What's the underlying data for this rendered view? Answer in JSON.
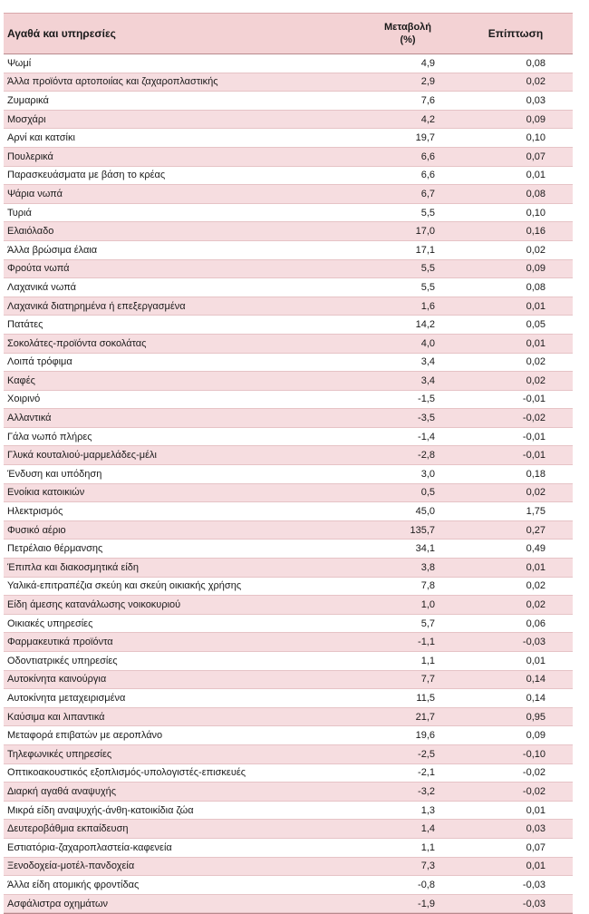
{
  "header": {
    "item": "Αγαθά και υπηρεσίες",
    "change_line1": "Μεταβολή",
    "change_line2": "(%)",
    "impact": "Επίπτωση"
  },
  "rows": [
    {
      "item": "Ψωμί",
      "change": "4,9",
      "impact": "0,08"
    },
    {
      "item": "Άλλα προϊόντα αρτοποιίας και ζαχαροπλαστικής",
      "change": "2,9",
      "impact": "0,02"
    },
    {
      "item": "Ζυμαρικά",
      "change": "7,6",
      "impact": "0,03"
    },
    {
      "item": "Μοσχάρι",
      "change": "4,2",
      "impact": "0,09"
    },
    {
      "item": "Αρνί και κατσίκι",
      "change": "19,7",
      "impact": "0,10"
    },
    {
      "item": "Πουλερικά",
      "change": "6,6",
      "impact": "0,07"
    },
    {
      "item": "Παρασκευάσματα με βάση το κρέας",
      "change": "6,6",
      "impact": "0,01"
    },
    {
      "item": "Ψάρια νωπά",
      "change": "6,7",
      "impact": "0,08"
    },
    {
      "item": "Τυριά",
      "change": "5,5",
      "impact": "0,10"
    },
    {
      "item": "Ελαιόλαδο",
      "change": "17,0",
      "impact": "0,16"
    },
    {
      "item": "Άλλα βρώσιμα έλαια",
      "change": "17,1",
      "impact": "0,02"
    },
    {
      "item": "Φρούτα νωπά",
      "change": "5,5",
      "impact": "0,09"
    },
    {
      "item": "Λαχανικά νωπά",
      "change": "5,5",
      "impact": "0,08"
    },
    {
      "item": "Λαχανικά διατηρημένα ή επεξεργασμένα",
      "change": "1,6",
      "impact": "0,01"
    },
    {
      "item": "Πατάτες",
      "change": "14,2",
      "impact": "0,05"
    },
    {
      "item": "Σοκολάτες-προϊόντα σοκολάτας",
      "change": "4,0",
      "impact": "0,01"
    },
    {
      "item": "Λοιπά τρόφιμα",
      "change": "3,4",
      "impact": "0,02"
    },
    {
      "item": "Καφές",
      "change": "3,4",
      "impact": "0,02"
    },
    {
      "item": "Χοιρινό",
      "change": "-1,5",
      "impact": "-0,01"
    },
    {
      "item": "Αλλαντικά",
      "change": "-3,5",
      "impact": "-0,02"
    },
    {
      "item": "Γάλα νωπό πλήρες",
      "change": "-1,4",
      "impact": "-0,01"
    },
    {
      "item": "Γλυκά κουταλιού-μαρμελάδες-μέλι",
      "change": "-2,8",
      "impact": "-0,01"
    },
    {
      "item": "Ένδυση και υπόδηση",
      "change": "3,0",
      "impact": "0,18"
    },
    {
      "item": "Ενοίκια κατοικιών",
      "change": "0,5",
      "impact": "0,02"
    },
    {
      "item": "Ηλεκτρισμός",
      "change": "45,0",
      "impact": "1,75"
    },
    {
      "item": "Φυσικό αέριο",
      "change": "135,7",
      "impact": "0,27"
    },
    {
      "item": "Πετρέλαιο θέρμανσης",
      "change": "34,1",
      "impact": "0,49"
    },
    {
      "item": "Έπιπλα και διακοσμητικά είδη",
      "change": "3,8",
      "impact": "0,01"
    },
    {
      "item": "Υαλικά-επιτραπέζια σκεύη και σκεύη οικιακής χρήσης",
      "change": "7,8",
      "impact": "0,02"
    },
    {
      "item": "Είδη άμεσης κατανάλωσης νοικοκυριού",
      "change": "1,0",
      "impact": "0,02"
    },
    {
      "item": "Οικιακές υπηρεσίες",
      "change": "5,7",
      "impact": "0,06"
    },
    {
      "item": "Φαρμακευτικά προϊόντα",
      "change": "-1,1",
      "impact": "-0,03"
    },
    {
      "item": "Οδοντιατρικές υπηρεσίες",
      "change": "1,1",
      "impact": "0,01"
    },
    {
      "item": "Αυτοκίνητα καινούργια",
      "change": "7,7",
      "impact": "0,14"
    },
    {
      "item": "Αυτοκίνητα μεταχειρισμένα",
      "change": "11,5",
      "impact": "0,14"
    },
    {
      "item": "Καύσιμα και λιπαντικά",
      "change": "21,7",
      "impact": "0,95"
    },
    {
      "item": "Μεταφορά επιβατών με αεροπλάνο",
      "change": "19,6",
      "impact": "0,09"
    },
    {
      "item": "Τηλεφωνικές υπηρεσίες",
      "change": "-2,5",
      "impact": "-0,10"
    },
    {
      "item": "Οπτικοακουστικός εξοπλισμός-υπολογιστές-επισκευές",
      "change": "-2,1",
      "impact": "-0,02"
    },
    {
      "item": "Διαρκή αγαθά αναψυχής",
      "change": "-3,2",
      "impact": "-0,02"
    },
    {
      "item": "Μικρά είδη αναψυχής-άνθη-κατοικίδια ζώα",
      "change": "1,3",
      "impact": "0,01"
    },
    {
      "item": "Δευτεροβάθμια εκπαίδευση",
      "change": "1,4",
      "impact": "0,03"
    },
    {
      "item": "Εστιατόρια-ζαχαροπλαστεία-καφενεία",
      "change": "1,1",
      "impact": "0,07"
    },
    {
      "item": "Ξενοδοχεία-μοτέλ-πανδοχεία",
      "change": "7,3",
      "impact": "0,01"
    },
    {
      "item": "Άλλα είδη ατομικής φροντίδας",
      "change": "-0,8",
      "impact": "-0,03"
    },
    {
      "item": "Ασφάλιστρα οχημάτων",
      "change": "-1,9",
      "impact": "-0,03"
    }
  ]
}
